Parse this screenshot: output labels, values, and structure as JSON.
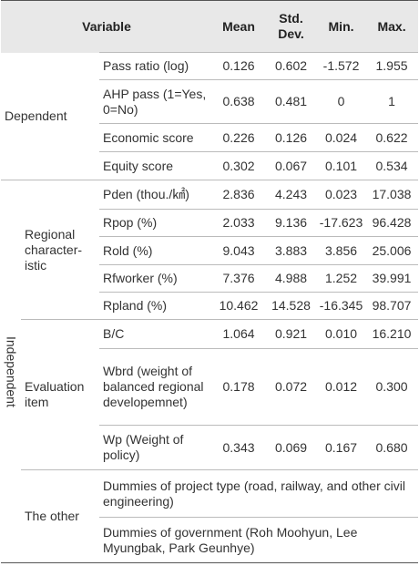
{
  "header": {
    "variable": "Variable",
    "mean": "Mean",
    "std_dev": "Std. Dev.",
    "min": "Min.",
    "max": "Max."
  },
  "dependent": {
    "label": "Dependent",
    "rows": [
      {
        "variable": "Pass ratio (log)",
        "values": [
          "0.126",
          "0.602",
          "-1.572",
          "1.955"
        ]
      },
      {
        "variable": "AHP pass (1=Yes, 0=No)",
        "values": [
          "0.638",
          "0.481",
          "0",
          "1"
        ]
      },
      {
        "variable": "Economic score",
        "values": [
          "0.226",
          "0.126",
          "0.024",
          "0.622"
        ]
      },
      {
        "variable": "Equity score",
        "values": [
          "0.302",
          "0.067",
          "0.101",
          "0.534"
        ]
      }
    ]
  },
  "independent": {
    "label": "Independent",
    "groups": [
      {
        "label": "Regional character-istic",
        "rows": [
          {
            "variable": "Pden (thou./㎢)",
            "values": [
              "2.836",
              "4.243",
              "0.023",
              "17.038"
            ]
          },
          {
            "variable": "Rpop (%)",
            "values": [
              "2.033",
              "9.136",
              "-17.623",
              "96.428"
            ]
          },
          {
            "variable": "Rold (%)",
            "values": [
              "9.043",
              "3.883",
              "3.856",
              "25.006"
            ]
          },
          {
            "variable": "Rfworker (%)",
            "values": [
              "7.376",
              "4.988",
              "1.252",
              "39.991"
            ]
          },
          {
            "variable": "Rpland (%)",
            "values": [
              "10.462",
              "14.528",
              "-16.345",
              "98.707"
            ]
          }
        ]
      },
      {
        "label": "Evaluation item",
        "rows": [
          {
            "variable": "B/C",
            "values": [
              "1.064",
              "0.921",
              "0.010",
              "16.210"
            ]
          },
          {
            "variable": "Wbrd (weight of balanced regional developemnet)",
            "values": [
              "0.178",
              "0.072",
              "0.012",
              "0.300"
            ]
          },
          {
            "variable": "Wp (Weight of policy)",
            "values": [
              "0.343",
              "0.069",
              "0.167",
              "0.680"
            ]
          }
        ]
      },
      {
        "label": "The other",
        "rows": [
          {
            "variable": "Dummies of project type (road, railway, and other civil engineering)"
          },
          {
            "variable": "Dummies of government (Roh Moohyun, Lee Myungbak, Park Geunhye)"
          }
        ]
      }
    ]
  }
}
